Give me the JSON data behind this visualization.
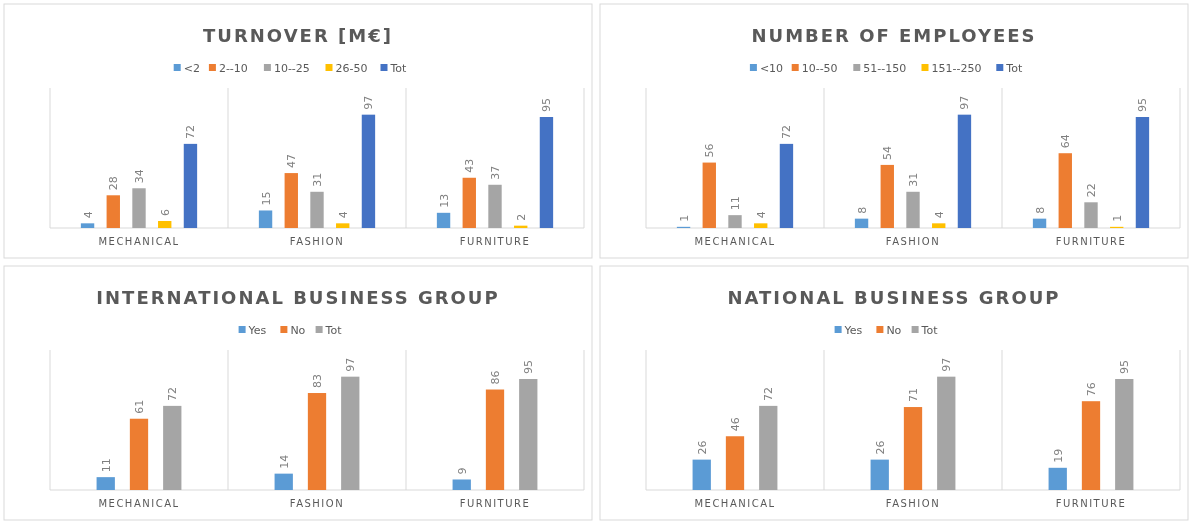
{
  "chart_data": [
    {
      "type": "bar",
      "title": "TURNOVER  [M€]",
      "categories": [
        "MECHANICAL",
        "FASHION",
        "FURNITURE"
      ],
      "legend": "top",
      "data_labels": true,
      "series": [
        {
          "name": "<2",
          "color": "#5b9bd5",
          "values": [
            4,
            15,
            13
          ]
        },
        {
          "name": "2--10",
          "color": "#ed7d31",
          "values": [
            28,
            47,
            43
          ]
        },
        {
          "name": "10--25",
          "color": "#a5a5a5",
          "values": [
            34,
            31,
            37
          ]
        },
        {
          "name": "26-50",
          "color": "#ffc000",
          "values": [
            6,
            4,
            2
          ]
        },
        {
          "name": "Tot",
          "color": "#4472c4",
          "values": [
            72,
            97,
            95
          ]
        }
      ]
    },
    {
      "type": "bar",
      "title": "NUMBER OF EMPLOYEES",
      "categories": [
        "MECHANICAL",
        "FASHION",
        "FURNITURE"
      ],
      "legend": "top",
      "data_labels": true,
      "series": [
        {
          "name": "<10",
          "color": "#5b9bd5",
          "values": [
            1,
            8,
            8
          ]
        },
        {
          "name": "10--50",
          "color": "#ed7d31",
          "values": [
            56,
            54,
            64
          ]
        },
        {
          "name": "51--150",
          "color": "#a5a5a5",
          "values": [
            11,
            31,
            22
          ]
        },
        {
          "name": "151--250",
          "color": "#ffc000",
          "values": [
            4,
            4,
            1
          ]
        },
        {
          "name": "Tot",
          "color": "#4472c4",
          "values": [
            72,
            97,
            95
          ]
        }
      ]
    },
    {
      "type": "bar",
      "title": "INTERNATIONAL  BUSINESS GROUP",
      "categories": [
        "MECHANICAL",
        "FASHION",
        "FURNITURE"
      ],
      "legend": "top",
      "data_labels": true,
      "series": [
        {
          "name": "Yes",
          "color": "#5b9bd5",
          "values": [
            11,
            14,
            9
          ]
        },
        {
          "name": "No",
          "color": "#ed7d31",
          "values": [
            61,
            83,
            86
          ]
        },
        {
          "name": "Tot",
          "color": "#a5a5a5",
          "values": [
            72,
            97,
            95
          ]
        }
      ]
    },
    {
      "type": "bar",
      "title": "NATIONAL  BUSINESS GROUP",
      "categories": [
        "MECHANICAL",
        "FASHION",
        "FURNITURE"
      ],
      "legend": "top",
      "data_labels": true,
      "series": [
        {
          "name": "Yes",
          "color": "#5b9bd5",
          "values": [
            26,
            26,
            19
          ]
        },
        {
          "name": "No",
          "color": "#ed7d31",
          "values": [
            46,
            71,
            76
          ]
        },
        {
          "name": "Tot",
          "color": "#a5a5a5",
          "values": [
            72,
            97,
            95
          ]
        }
      ]
    }
  ]
}
